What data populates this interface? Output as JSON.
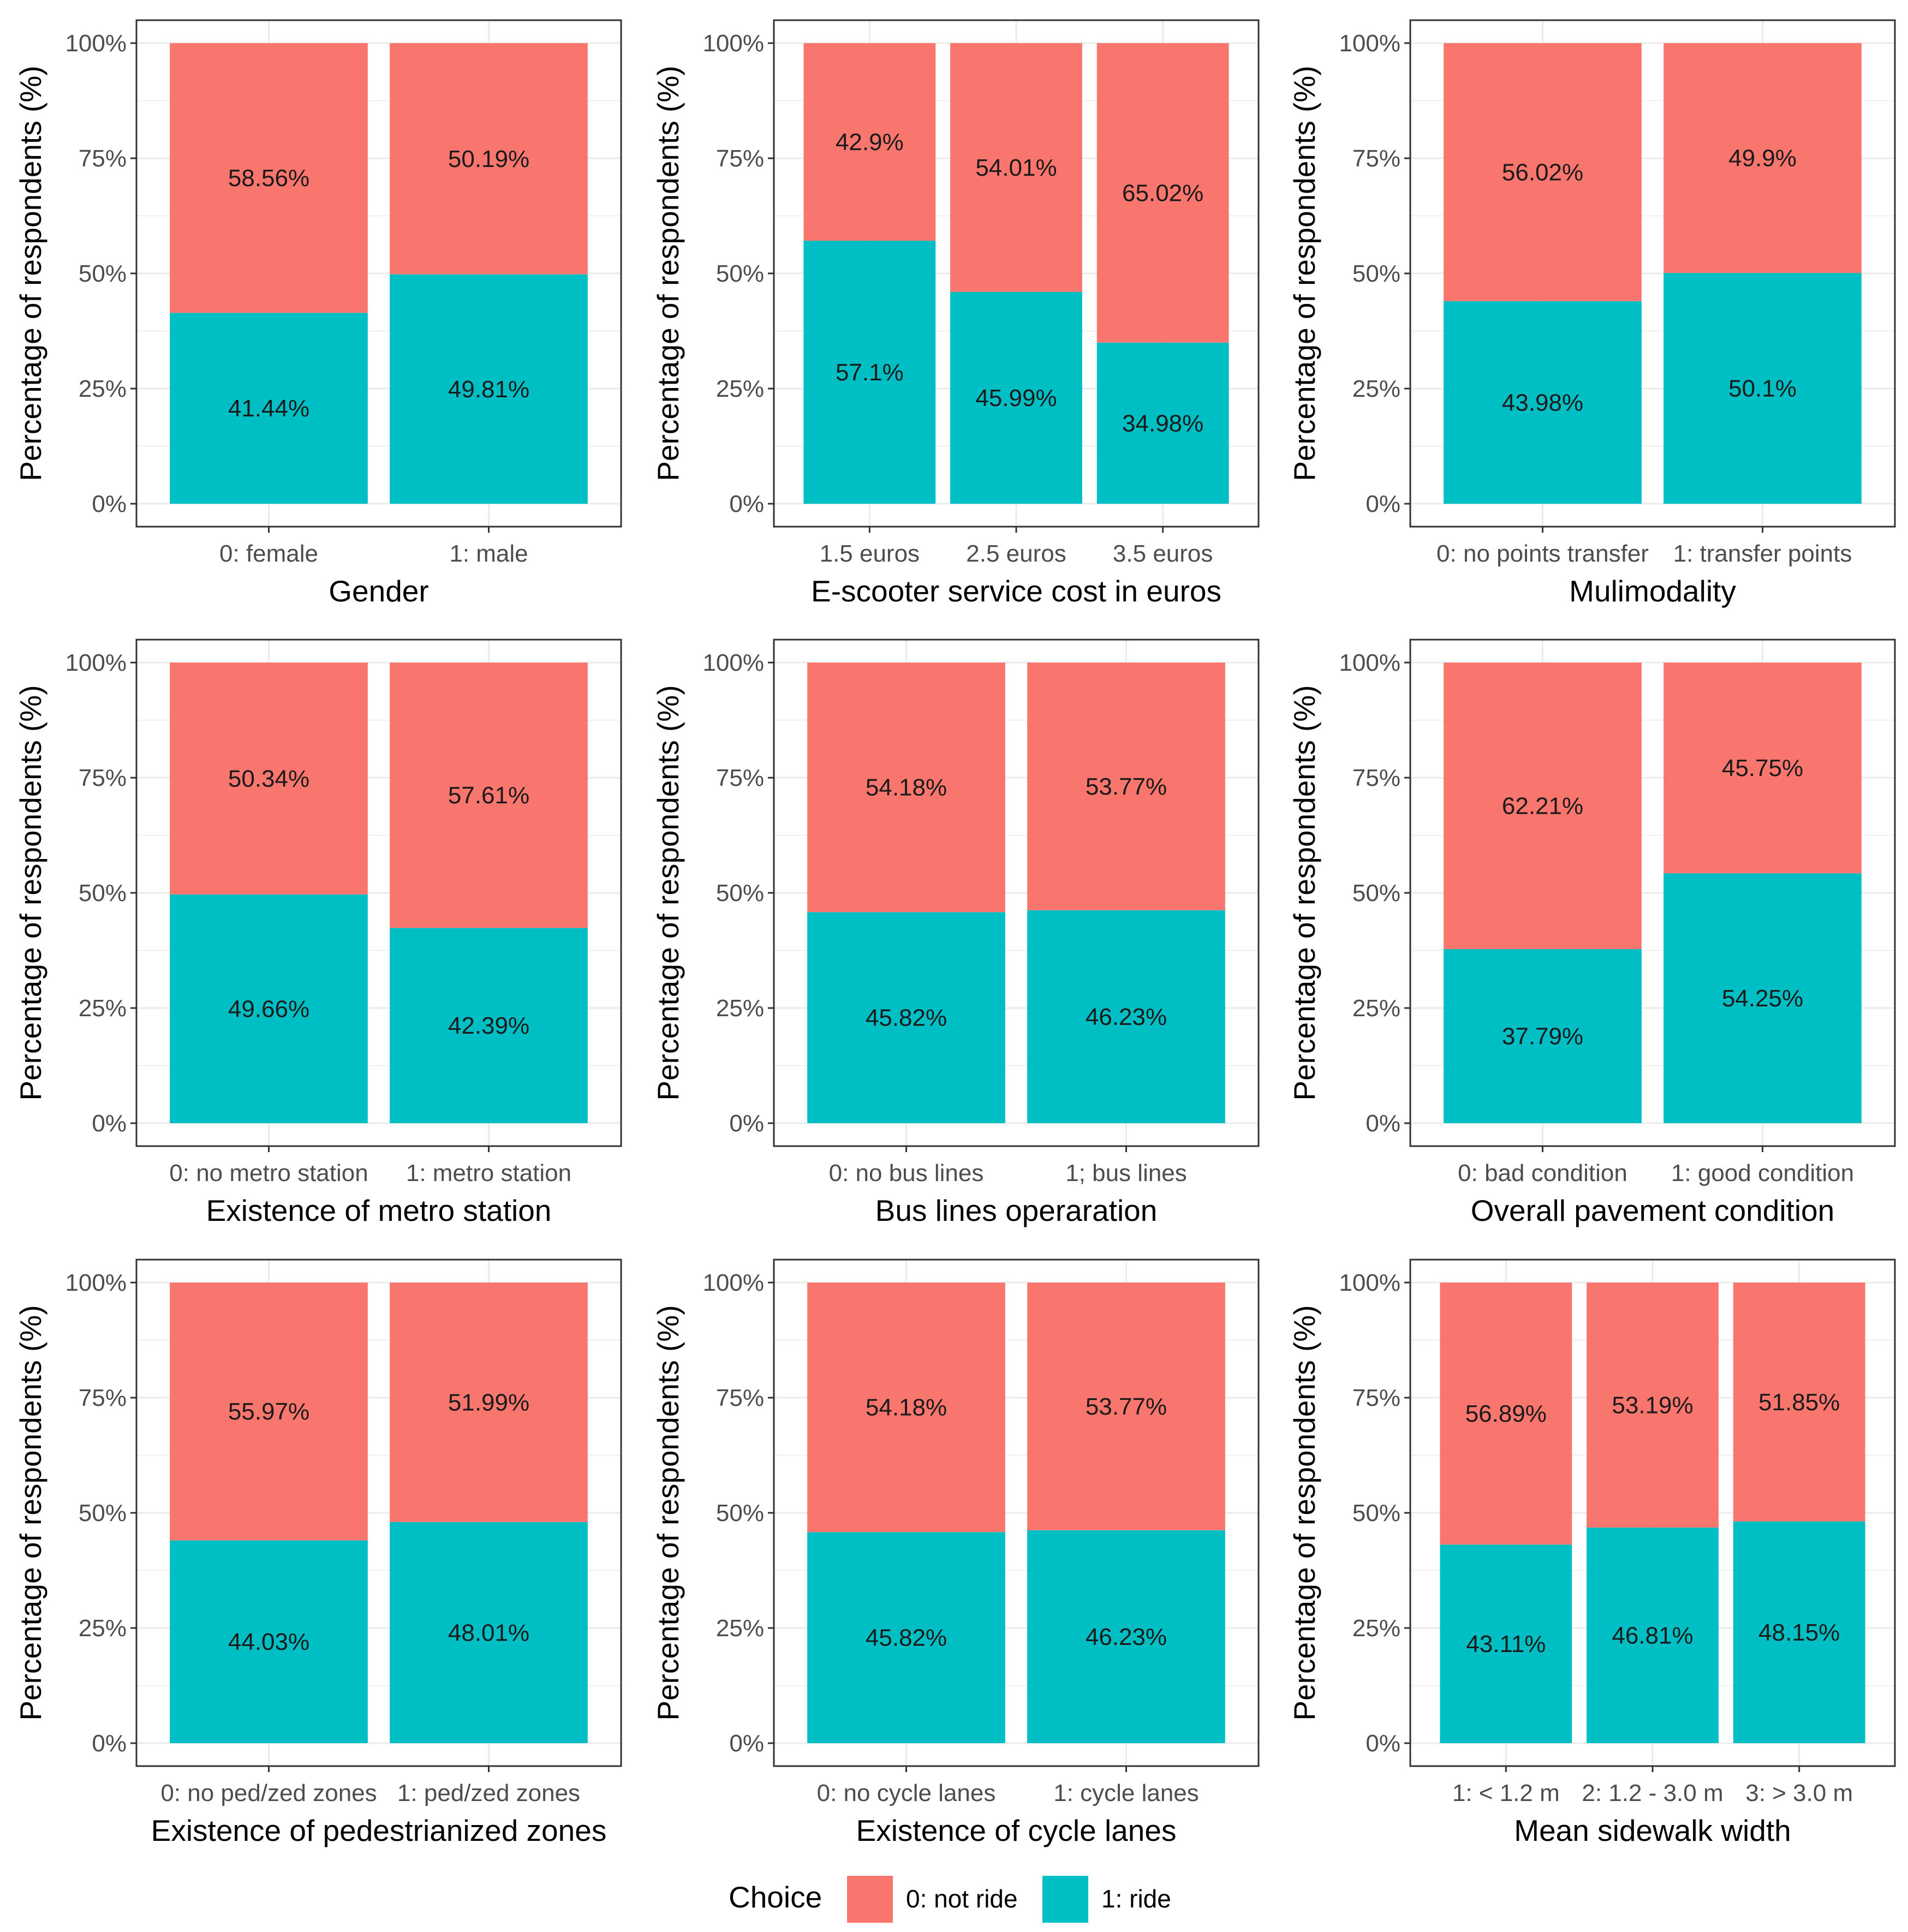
{
  "y_axis_label": "Percentage of respondents (%)",
  "y_ticks": [
    "0%",
    "25%",
    "50%",
    "75%",
    "100%"
  ],
  "legend": {
    "title": "Choice",
    "items": [
      {
        "label": "0: not ride",
        "color": "#F8766D"
      },
      {
        "label": "1: ride",
        "color": "#00BFC4"
      }
    ]
  },
  "colors": {
    "not_ride": "#F8766D",
    "ride": "#00BFC4",
    "grid": "#EBEBEB"
  },
  "chart_data": [
    {
      "type": "bar",
      "stacked": true,
      "title": "",
      "xlabel": "Gender",
      "ylabel": "Percentage of respondents (%)",
      "ylim": [
        0,
        100
      ],
      "categories": [
        "0: female",
        "1: male"
      ],
      "series": [
        {
          "name": "0: not ride",
          "values": [
            58.56,
            50.19
          ],
          "labels": [
            "58.56%",
            "50.19%"
          ]
        },
        {
          "name": "1: ride",
          "values": [
            41.44,
            49.81
          ],
          "labels": [
            "41.44%",
            "49.81%"
          ]
        }
      ]
    },
    {
      "type": "bar",
      "stacked": true,
      "title": "",
      "xlabel": "E-scooter service cost in euros",
      "ylabel": "Percentage of respondents (%)",
      "ylim": [
        0,
        100
      ],
      "categories": [
        "1.5 euros",
        "2.5 euros",
        "3.5 euros"
      ],
      "series": [
        {
          "name": "0: not ride",
          "values": [
            42.9,
            54.01,
            65.02
          ],
          "labels": [
            "42.9%",
            "54.01%",
            "65.02%"
          ]
        },
        {
          "name": "1: ride",
          "values": [
            57.1,
            45.99,
            34.98
          ],
          "labels": [
            "57.1%",
            "45.99%",
            "34.98%"
          ]
        }
      ]
    },
    {
      "type": "bar",
      "stacked": true,
      "title": "",
      "xlabel": "Mulimodality",
      "ylabel": "Percentage of respondents (%)",
      "ylim": [
        0,
        100
      ],
      "categories": [
        "0: no points transfer",
        "1: transfer points"
      ],
      "series": [
        {
          "name": "0: not ride",
          "values": [
            56.02,
            49.9
          ],
          "labels": [
            "56.02%",
            "49.9%"
          ]
        },
        {
          "name": "1: ride",
          "values": [
            43.98,
            50.1
          ],
          "labels": [
            "43.98%",
            "50.1%"
          ]
        }
      ]
    },
    {
      "type": "bar",
      "stacked": true,
      "title": "",
      "xlabel": "Existence of metro station",
      "ylabel": "Percentage of respondents (%)",
      "ylim": [
        0,
        100
      ],
      "categories": [
        "0: no metro station",
        "1: metro station"
      ],
      "series": [
        {
          "name": "0: not ride",
          "values": [
            50.34,
            57.61
          ],
          "labels": [
            "50.34%",
            "57.61%"
          ]
        },
        {
          "name": "1: ride",
          "values": [
            49.66,
            42.39
          ],
          "labels": [
            "49.66%",
            "42.39%"
          ]
        }
      ]
    },
    {
      "type": "bar",
      "stacked": true,
      "title": "",
      "xlabel": "Bus lines operaration",
      "ylabel": "Percentage of respondents (%)",
      "ylim": [
        0,
        100
      ],
      "categories": [
        "0: no bus lines",
        "1; bus lines"
      ],
      "series": [
        {
          "name": "0: not ride",
          "values": [
            54.18,
            53.77
          ],
          "labels": [
            "54.18%",
            "53.77%"
          ]
        },
        {
          "name": "1: ride",
          "values": [
            45.82,
            46.23
          ],
          "labels": [
            "45.82%",
            "46.23%"
          ]
        }
      ]
    },
    {
      "type": "bar",
      "stacked": true,
      "title": "",
      "xlabel": "Overall pavement condition",
      "ylabel": "Percentage of respondents (%)",
      "ylim": [
        0,
        100
      ],
      "categories": [
        "0: bad condition",
        "1: good condition"
      ],
      "series": [
        {
          "name": "0: not ride",
          "values": [
            62.21,
            45.75
          ],
          "labels": [
            "62.21%",
            "45.75%"
          ]
        },
        {
          "name": "1: ride",
          "values": [
            37.79,
            54.25
          ],
          "labels": [
            "37.79%",
            "54.25%"
          ]
        }
      ]
    },
    {
      "type": "bar",
      "stacked": true,
      "title": "",
      "xlabel": "Existence of pedestrianized zones",
      "ylabel": "Percentage of respondents (%)",
      "ylim": [
        0,
        100
      ],
      "categories": [
        "0: no ped/zed zones",
        "1: ped/zed zones"
      ],
      "series": [
        {
          "name": "0: not ride",
          "values": [
            55.97,
            51.99
          ],
          "labels": [
            "55.97%",
            "51.99%"
          ]
        },
        {
          "name": "1: ride",
          "values": [
            44.03,
            48.01
          ],
          "labels": [
            "44.03%",
            "48.01%"
          ]
        }
      ]
    },
    {
      "type": "bar",
      "stacked": true,
      "title": "",
      "xlabel": "Existence of cycle lanes",
      "ylabel": "Percentage of respondents (%)",
      "ylim": [
        0,
        100
      ],
      "categories": [
        "0: no cycle lanes",
        "1: cycle lanes"
      ],
      "series": [
        {
          "name": "0: not ride",
          "values": [
            54.18,
            53.77
          ],
          "labels": [
            "54.18%",
            "53.77%"
          ]
        },
        {
          "name": "1: ride",
          "values": [
            45.82,
            46.23
          ],
          "labels": [
            "45.82%",
            "46.23%"
          ]
        }
      ]
    },
    {
      "type": "bar",
      "stacked": true,
      "title": "",
      "xlabel": "Mean sidewalk width",
      "ylabel": "Percentage of respondents (%)",
      "ylim": [
        0,
        100
      ],
      "categories": [
        "1: < 1.2 m",
        "2: 1.2 - 3.0 m",
        "3: > 3.0 m"
      ],
      "series": [
        {
          "name": "0: not ride",
          "values": [
            56.89,
            53.19,
            51.85
          ],
          "labels": [
            "56.89%",
            "53.19%",
            "51.85%"
          ]
        },
        {
          "name": "1: ride",
          "values": [
            43.11,
            46.81,
            48.15
          ],
          "labels": [
            "43.11%",
            "46.81%",
            "48.15%"
          ]
        }
      ]
    }
  ]
}
